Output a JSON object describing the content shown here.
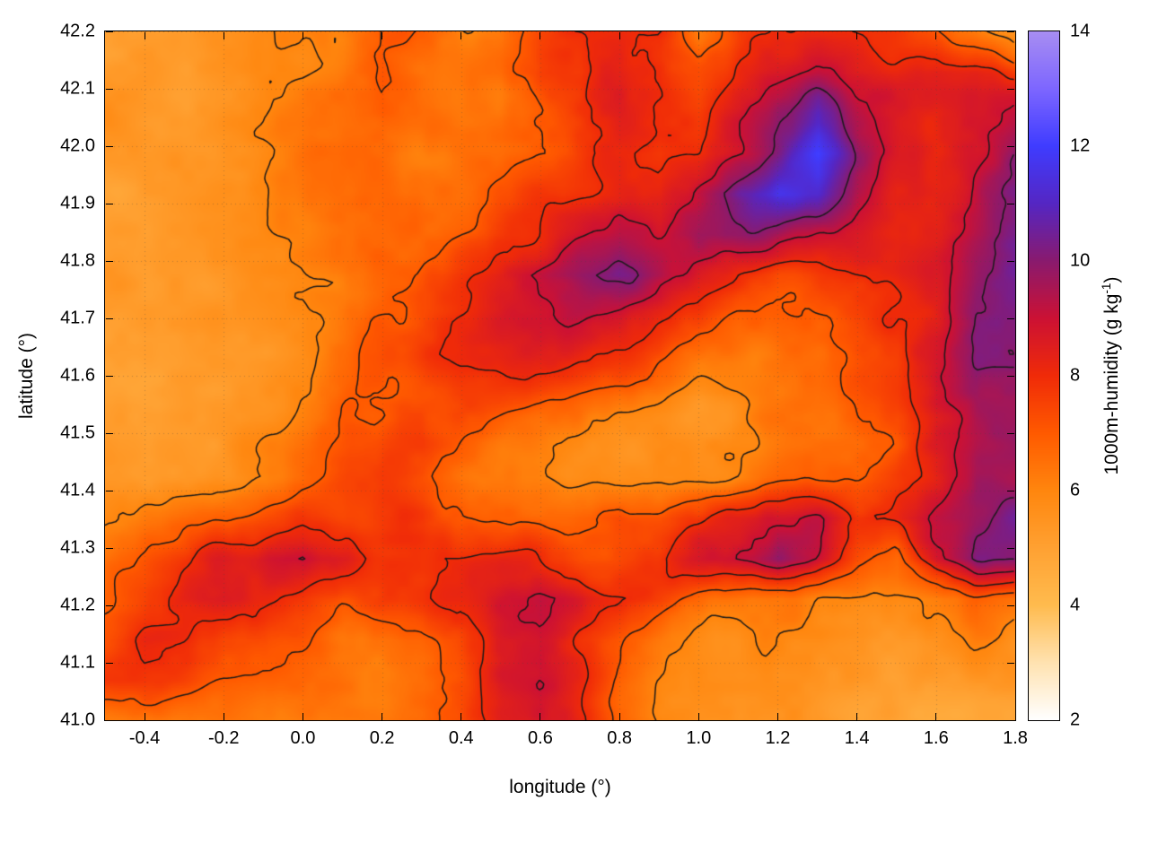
{
  "page": {
    "background": "#ffffff"
  },
  "chart_data": {
    "type": "heatmap",
    "title": "",
    "xlabel": "longitude (°)",
    "ylabel": "latitude (°)",
    "colorbar_label": "1000m-humidity (g kg⁻¹)",
    "colorbar_label_parts": {
      "main": "1000m-humidity (g kg",
      "sup": "-1",
      "close": ")"
    },
    "x_range": [
      -0.5,
      1.8
    ],
    "y_range": [
      41.0,
      42.2
    ],
    "colorbar_range": [
      2,
      14
    ],
    "x_tick_values": [
      -0.4,
      -0.2,
      0.0,
      0.2,
      0.4,
      0.6,
      0.8,
      1.0,
      1.2,
      1.4,
      1.6,
      1.8
    ],
    "x_tick_labels": [
      "-0.4",
      "-0.2",
      "0.0",
      "0.2",
      "0.4",
      "0.6",
      "0.8",
      "1.0",
      "1.2",
      "1.4",
      "1.6",
      "1.8"
    ],
    "y_tick_values": [
      41.0,
      41.1,
      41.2,
      41.3,
      41.4,
      41.5,
      41.6,
      41.7,
      41.8,
      41.9,
      42.0,
      42.1,
      42.2
    ],
    "y_tick_labels": [
      "41.0",
      "41.1",
      "41.2",
      "41.3",
      "41.4",
      "41.5",
      "41.6",
      "41.7",
      "41.8",
      "41.9",
      "42.0",
      "42.1",
      "42.2"
    ],
    "colorbar_tick_values": [
      2,
      4,
      6,
      8,
      10,
      12,
      14
    ],
    "colorbar_tick_labels": [
      "2",
      "4",
      "6",
      "8",
      "10",
      "12",
      "14"
    ],
    "colorbar_minor_tick_values": [
      3,
      5,
      7,
      9,
      11,
      13
    ],
    "grid_dotted": true,
    "contour_levels": [
      6,
      7,
      8,
      9,
      10
    ],
    "contour_color": "#1a1a1a",
    "palette": [
      [
        2,
        "#ffffff"
      ],
      [
        3,
        "#ffe2b0"
      ],
      [
        4,
        "#ffbb4e"
      ],
      [
        5,
        "#ffa132"
      ],
      [
        6,
        "#ff860e"
      ],
      [
        7,
        "#ff5a00"
      ],
      [
        8,
        "#f02b08"
      ],
      [
        9,
        "#cc1134"
      ],
      [
        10,
        "#8a1a6e"
      ],
      [
        11,
        "#5526c3"
      ],
      [
        12,
        "#3f3cff"
      ],
      [
        13,
        "#7d66ff"
      ],
      [
        14,
        "#a78df2"
      ]
    ],
    "noise_amplitude": 1.0,
    "field": {
      "ncols": 24,
      "nrows": 18,
      "values": [
        [
          5.5,
          5.5,
          5.5,
          5.6,
          5.6,
          5.7,
          6.0,
          6.8,
          6.5,
          5.8,
          6.2,
          7.5,
          8.0,
          8.2,
          8.0,
          6.5,
          7.8,
          8.2,
          8.5,
          8.3,
          8.0,
          7.5,
          6.5,
          5.2
        ],
        [
          5.4,
          5.5,
          5.5,
          5.5,
          5.6,
          5.8,
          6.2,
          7.0,
          6.3,
          6.0,
          6.5,
          7.8,
          7.5,
          8.3,
          7.8,
          7.0,
          8.0,
          8.8,
          9.3,
          8.5,
          8.2,
          8.5,
          8.3,
          7.5
        ],
        [
          5.4,
          5.4,
          5.5,
          5.6,
          5.7,
          6.0,
          6.5,
          7.0,
          6.3,
          6.0,
          6.3,
          7.0,
          7.5,
          8.0,
          7.5,
          7.3,
          8.3,
          9.5,
          10.8,
          9.0,
          8.3,
          8.0,
          8.5,
          9.0
        ],
        [
          5.3,
          5.4,
          5.5,
          5.6,
          5.8,
          6.2,
          6.6,
          6.4,
          6.2,
          6.3,
          6.5,
          6.8,
          7.3,
          7.8,
          7.3,
          7.5,
          8.5,
          10.0,
          11.8,
          9.5,
          8.5,
          8.0,
          8.8,
          9.8
        ],
        [
          5.3,
          5.4,
          5.4,
          5.5,
          5.7,
          6.0,
          6.4,
          6.5,
          6.4,
          6.6,
          7.0,
          7.3,
          7.8,
          8.2,
          8.0,
          9.0,
          10.5,
          11.5,
          11.0,
          9.0,
          8.3,
          8.5,
          9.3,
          10.3
        ],
        [
          5.3,
          5.3,
          5.4,
          5.5,
          5.6,
          5.9,
          6.3,
          6.6,
          6.8,
          7.2,
          7.6,
          8.0,
          8.6,
          9.0,
          8.8,
          9.5,
          10.0,
          9.5,
          8.8,
          8.3,
          8.0,
          8.5,
          9.5,
          10.2
        ],
        [
          5.3,
          5.3,
          5.4,
          5.5,
          5.6,
          5.8,
          6.2,
          6.8,
          7.4,
          8.0,
          8.6,
          9.3,
          9.8,
          10.0,
          9.5,
          8.8,
          8.0,
          7.5,
          7.6,
          8.0,
          8.2,
          8.6,
          9.8,
          10.5
        ],
        [
          5.2,
          5.3,
          5.4,
          5.5,
          5.6,
          5.8,
          6.3,
          7.0,
          7.6,
          8.3,
          8.8,
          9.0,
          9.2,
          8.8,
          8.3,
          7.8,
          7.0,
          6.8,
          7.0,
          7.5,
          7.8,
          8.5,
          10.2,
          10.4
        ],
        [
          5.2,
          5.3,
          5.3,
          5.4,
          5.6,
          6.0,
          6.6,
          7.2,
          7.8,
          8.2,
          8.4,
          8.3,
          8.0,
          7.6,
          7.2,
          6.8,
          6.3,
          6.2,
          6.5,
          7.0,
          7.6,
          8.8,
          10.3,
          9.8
        ],
        [
          5.2,
          5.2,
          5.3,
          5.4,
          5.7,
          6.2,
          6.8,
          7.0,
          7.4,
          7.8,
          7.6,
          7.2,
          6.8,
          6.4,
          6.1,
          5.9,
          5.9,
          6.0,
          6.3,
          6.8,
          7.5,
          9.0,
          9.8,
          9.4
        ],
        [
          5.2,
          5.2,
          5.3,
          5.5,
          5.9,
          6.4,
          7.0,
          7.4,
          7.8,
          7.2,
          6.8,
          6.5,
          6.2,
          6.0,
          5.9,
          5.8,
          5.8,
          6.0,
          6.2,
          6.6,
          7.3,
          8.8,
          9.5,
          9.9
        ],
        [
          5.3,
          5.3,
          5.4,
          5.6,
          6.0,
          6.6,
          7.2,
          7.8,
          7.5,
          6.8,
          6.4,
          6.2,
          6.0,
          6.0,
          6.0,
          6.0,
          6.1,
          6.4,
          6.6,
          6.9,
          7.8,
          8.6,
          9.8,
          9.6
        ],
        [
          5.6,
          5.9,
          6.3,
          6.8,
          7.4,
          7.8,
          7.6,
          8.0,
          7.8,
          7.0,
          6.6,
          6.6,
          7.0,
          7.6,
          7.4,
          7.6,
          8.0,
          8.6,
          9.0,
          8.0,
          8.4,
          9.4,
          10.0,
          10.2
        ],
        [
          6.2,
          6.8,
          7.6,
          8.4,
          8.8,
          9.3,
          8.6,
          8.0,
          7.6,
          7.9,
          8.2,
          7.6,
          7.3,
          7.5,
          7.8,
          8.3,
          8.8,
          9.6,
          8.8,
          7.2,
          6.8,
          9.0,
          10.3,
          9.8
        ],
        [
          6.8,
          7.4,
          8.2,
          8.6,
          8.2,
          7.8,
          7.2,
          7.6,
          7.4,
          7.8,
          8.4,
          8.8,
          8.4,
          8.0,
          7.6,
          6.8,
          6.3,
          6.0,
          5.9,
          5.8,
          5.8,
          6.0,
          6.8,
          6.4
        ],
        [
          7.6,
          8.2,
          7.8,
          7.2,
          7.4,
          7.0,
          6.5,
          6.3,
          6.5,
          7.2,
          8.2,
          8.6,
          7.6,
          6.8,
          6.4,
          6.1,
          5.8,
          5.6,
          5.5,
          5.4,
          5.4,
          5.5,
          6.0,
          5.8
        ],
        [
          8.0,
          7.8,
          7.2,
          6.8,
          6.6,
          6.8,
          6.3,
          6.1,
          6.3,
          7.0,
          8.4,
          8.8,
          7.8,
          6.5,
          6.0,
          5.8,
          5.6,
          5.5,
          5.4,
          5.3,
          5.2,
          5.2,
          5.4,
          5.3
        ],
        [
          6.6,
          6.4,
          6.2,
          6.4,
          6.2,
          6.3,
          6.1,
          6.0,
          6.4,
          7.2,
          8.3,
          8.6,
          8.0,
          6.6,
          6.0,
          5.8,
          5.6,
          5.4,
          5.3,
          5.2,
          5.1,
          5.0,
          5.0,
          5.0
        ]
      ]
    }
  }
}
